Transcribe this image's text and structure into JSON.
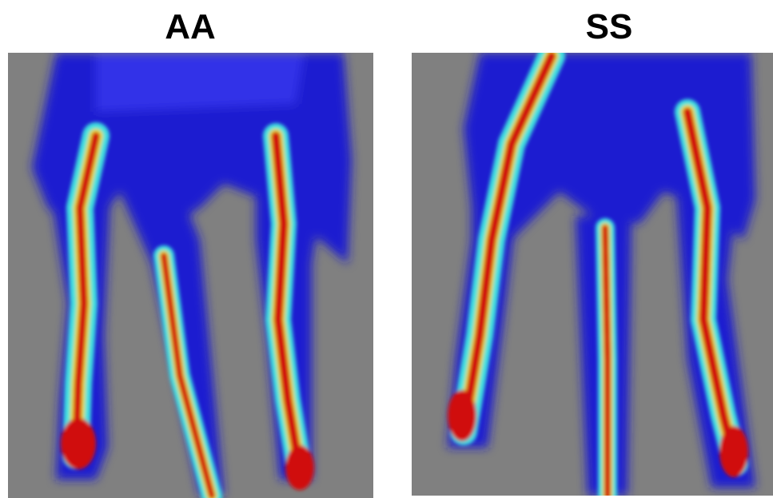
{
  "panels": [
    {
      "title": "AA"
    },
    {
      "title": "SS"
    }
  ]
}
